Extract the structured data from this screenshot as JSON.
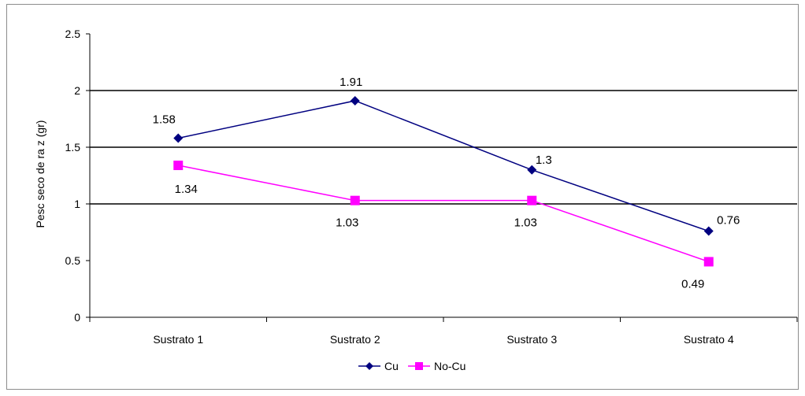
{
  "chart_data": {
    "type": "line",
    "title": "",
    "xlabel": "",
    "ylabel": "Pesc seco de ra z (gr)",
    "ylim": [
      0,
      2.5
    ],
    "yticks": [
      "0",
      "0.5",
      "1",
      "1.5",
      "2",
      "2.5"
    ],
    "categories": [
      "Sustrato 1",
      "Sustrato 2",
      "Sustrato 3",
      "Sustrato 4"
    ],
    "grid": "horizontal at 1, 1.5, 2",
    "legend_position": "bottom",
    "series": [
      {
        "name": "Cu",
        "values": [
          1.58,
          1.91,
          1.3,
          0.76
        ],
        "labels": [
          "1.58",
          "1.91",
          "1.3",
          "0.76"
        ],
        "color": "#000080",
        "marker": "diamond"
      },
      {
        "name": "No-Cu",
        "values": [
          1.34,
          1.03,
          1.03,
          0.49
        ],
        "labels": [
          "1.34",
          "1.03",
          "1.03",
          "0.49"
        ],
        "color": "#ff00ff",
        "marker": "square"
      }
    ]
  }
}
